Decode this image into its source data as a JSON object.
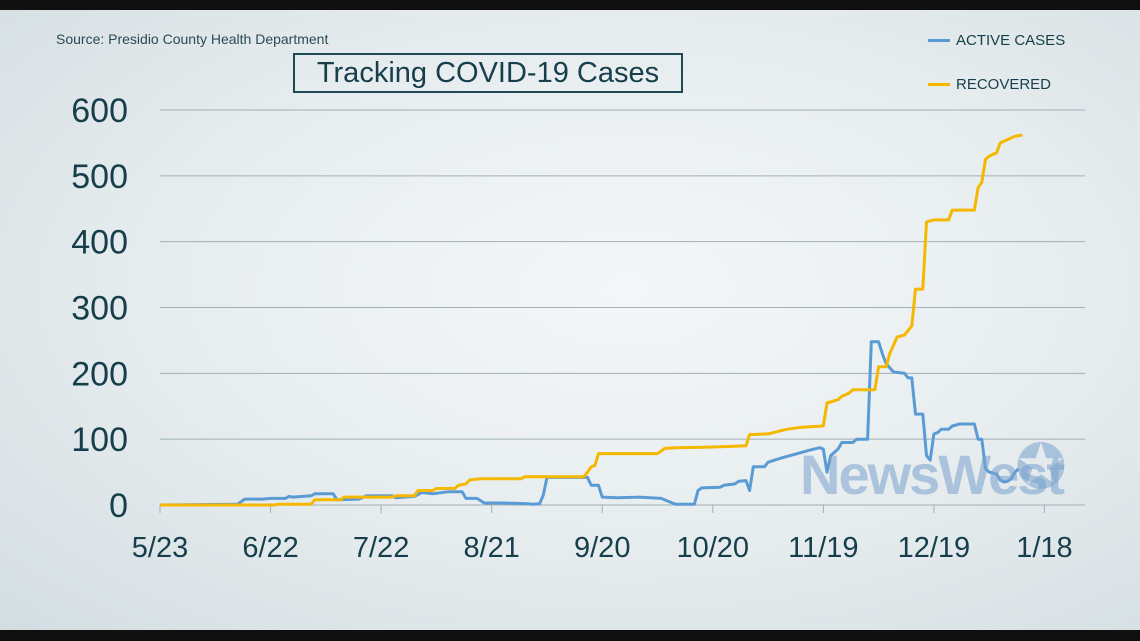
{
  "source": "Source: Presidio County Health Department",
  "title": "Tracking COVID-19 Cases",
  "watermark": "NewsWest",
  "legend": [
    {
      "name": "ACTIVE CASES",
      "color": "#5b9bd5"
    },
    {
      "name": "RECOVERED",
      "color": "#f5b800"
    }
  ],
  "chart_data": {
    "type": "line",
    "title": "Tracking COVID-19 Cases",
    "xlabel": "",
    "ylabel": "",
    "ylim": [
      0,
      600
    ],
    "yticks": [
      0,
      100,
      200,
      300,
      400,
      500,
      600
    ],
    "xlim": [
      "2020-05-23",
      "2021-01-29"
    ],
    "xticks": [
      {
        "label": "5/23",
        "date": "2020-05-23"
      },
      {
        "label": "6/22",
        "date": "2020-06-22"
      },
      {
        "label": "7/22",
        "date": "2020-07-22"
      },
      {
        "label": "8/21",
        "date": "2020-08-21"
      },
      {
        "label": "9/20",
        "date": "2020-09-20"
      },
      {
        "label": "10/20",
        "date": "2020-10-20"
      },
      {
        "label": "11/19",
        "date": "2020-11-19"
      },
      {
        "label": "12/19",
        "date": "2020-12-19"
      },
      {
        "label": "1/18",
        "date": "2021-01-18"
      }
    ],
    "grid": true,
    "legend_position": "top-right",
    "series": [
      {
        "name": "ACTIVE CASES",
        "color": "#5b9bd5",
        "points": [
          [
            "2020-05-23",
            0
          ],
          [
            "2020-06-13",
            1
          ],
          [
            "2020-06-15",
            9
          ],
          [
            "2020-06-20",
            9
          ],
          [
            "2020-06-22",
            10
          ],
          [
            "2020-06-26",
            10
          ],
          [
            "2020-06-27",
            13
          ],
          [
            "2020-06-28",
            12
          ],
          [
            "2020-07-03",
            14
          ],
          [
            "2020-07-04",
            17
          ],
          [
            "2020-07-09",
            17
          ],
          [
            "2020-07-10",
            8
          ],
          [
            "2020-07-16",
            9
          ],
          [
            "2020-07-18",
            14
          ],
          [
            "2020-07-25",
            14
          ],
          [
            "2020-07-26",
            11
          ],
          [
            "2020-07-31",
            13
          ],
          [
            "2020-08-02",
            19
          ],
          [
            "2020-08-05",
            17
          ],
          [
            "2020-08-09",
            20
          ],
          [
            "2020-08-13",
            20
          ],
          [
            "2020-08-14",
            10
          ],
          [
            "2020-08-17",
            10
          ],
          [
            "2020-08-19",
            3
          ],
          [
            "2020-08-24",
            3
          ],
          [
            "2020-08-31",
            2
          ],
          [
            "2020-09-01",
            1
          ],
          [
            "2020-09-03",
            2
          ],
          [
            "2020-09-04",
            15
          ],
          [
            "2020-09-05",
            42
          ],
          [
            "2020-09-16",
            42
          ],
          [
            "2020-09-17",
            30
          ],
          [
            "2020-09-19",
            30
          ],
          [
            "2020-09-20",
            12
          ],
          [
            "2020-09-24",
            11
          ],
          [
            "2020-09-30",
            12
          ],
          [
            "2020-10-06",
            10
          ],
          [
            "2020-10-09",
            3
          ],
          [
            "2020-10-10",
            1
          ],
          [
            "2020-10-15",
            1
          ],
          [
            "2020-10-16",
            22
          ],
          [
            "2020-10-17",
            26
          ],
          [
            "2020-10-22",
            27
          ],
          [
            "2020-10-23",
            30
          ],
          [
            "2020-10-26",
            32
          ],
          [
            "2020-10-27",
            36
          ],
          [
            "2020-10-29",
            37
          ],
          [
            "2020-10-30",
            22
          ],
          [
            "2020-10-31",
            58
          ],
          [
            "2020-11-03",
            58
          ],
          [
            "2020-11-04",
            65
          ],
          [
            "2020-11-08",
            72
          ],
          [
            "2020-11-12",
            78
          ],
          [
            "2020-11-15",
            83
          ],
          [
            "2020-11-18",
            87
          ],
          [
            "2020-11-19",
            85
          ],
          [
            "2020-11-20",
            50
          ],
          [
            "2020-11-21",
            75
          ],
          [
            "2020-11-23",
            85
          ],
          [
            "2020-11-24",
            95
          ],
          [
            "2020-11-27",
            95
          ],
          [
            "2020-11-28",
            100
          ],
          [
            "2020-12-01",
            100
          ],
          [
            "2020-12-02",
            248
          ],
          [
            "2020-12-04",
            248
          ],
          [
            "2020-12-05",
            230
          ],
          [
            "2020-12-06",
            215
          ],
          [
            "2020-12-08",
            202
          ],
          [
            "2020-12-11",
            200
          ],
          [
            "2020-12-12",
            193
          ],
          [
            "2020-12-13",
            193
          ],
          [
            "2020-12-14",
            138
          ],
          [
            "2020-12-16",
            138
          ],
          [
            "2020-12-17",
            75
          ],
          [
            "2020-12-18",
            68
          ],
          [
            "2020-12-19",
            108
          ],
          [
            "2020-12-20",
            110
          ],
          [
            "2020-12-21",
            115
          ],
          [
            "2020-12-23",
            115
          ],
          [
            "2020-12-24",
            120
          ],
          [
            "2020-12-26",
            123
          ],
          [
            "2020-12-30",
            123
          ],
          [
            "2020-12-31",
            100
          ],
          [
            "2021-01-01",
            100
          ],
          [
            "2021-01-02",
            55
          ],
          [
            "2021-01-03",
            50
          ],
          [
            "2021-01-05",
            47
          ],
          [
            "2021-01-06",
            38
          ],
          [
            "2021-01-07",
            35
          ],
          [
            "2021-01-08",
            36
          ],
          [
            "2021-01-09",
            40
          ],
          [
            "2021-01-10",
            50
          ],
          [
            "2021-01-11",
            55
          ]
        ]
      },
      {
        "name": "RECOVERED",
        "color": "#f5b800",
        "points": [
          [
            "2020-05-23",
            0
          ],
          [
            "2020-06-23",
            0
          ],
          [
            "2020-06-24",
            1
          ],
          [
            "2020-07-03",
            1
          ],
          [
            "2020-07-04",
            8
          ],
          [
            "2020-07-11",
            8
          ],
          [
            "2020-07-12",
            12
          ],
          [
            "2020-07-25",
            12
          ],
          [
            "2020-07-26",
            14
          ],
          [
            "2020-07-31",
            14
          ],
          [
            "2020-08-01",
            22
          ],
          [
            "2020-08-05",
            22
          ],
          [
            "2020-08-06",
            25
          ],
          [
            "2020-08-11",
            25
          ],
          [
            "2020-08-12",
            30
          ],
          [
            "2020-08-14",
            32
          ],
          [
            "2020-08-15",
            38
          ],
          [
            "2020-08-18",
            40
          ],
          [
            "2020-08-29",
            40
          ],
          [
            "2020-08-30",
            43
          ],
          [
            "2020-09-15",
            43
          ],
          [
            "2020-09-16",
            50
          ],
          [
            "2020-09-17",
            58
          ],
          [
            "2020-09-18",
            60
          ],
          [
            "2020-09-19",
            78
          ],
          [
            "2020-10-05",
            78
          ],
          [
            "2020-10-06",
            82
          ],
          [
            "2020-10-07",
            86
          ],
          [
            "2020-10-10",
            87
          ],
          [
            "2020-10-19",
            88
          ],
          [
            "2020-10-25",
            89
          ],
          [
            "2020-10-29",
            90
          ],
          [
            "2020-10-30",
            107
          ],
          [
            "2020-11-04",
            108
          ],
          [
            "2020-11-09",
            115
          ],
          [
            "2020-11-13",
            118
          ],
          [
            "2020-11-19",
            120
          ],
          [
            "2020-11-20",
            155
          ],
          [
            "2020-11-23",
            160
          ],
          [
            "2020-11-24",
            165
          ],
          [
            "2020-11-26",
            170
          ],
          [
            "2020-11-27",
            175
          ],
          [
            "2020-12-03",
            175
          ],
          [
            "2020-12-04",
            210
          ],
          [
            "2020-12-06",
            210
          ],
          [
            "2020-12-07",
            230
          ],
          [
            "2020-12-09",
            255
          ],
          [
            "2020-12-11",
            258
          ],
          [
            "2020-12-12",
            265
          ],
          [
            "2020-12-13",
            272
          ],
          [
            "2020-12-14",
            328
          ],
          [
            "2020-12-16",
            328
          ],
          [
            "2020-12-17",
            430
          ],
          [
            "2020-12-19",
            433
          ],
          [
            "2020-12-23",
            433
          ],
          [
            "2020-12-24",
            448
          ],
          [
            "2020-12-30",
            448
          ],
          [
            "2020-12-31",
            482
          ],
          [
            "2021-01-01",
            490
          ],
          [
            "2021-01-02",
            525
          ],
          [
            "2021-01-03",
            530
          ],
          [
            "2021-01-05",
            535
          ],
          [
            "2021-01-06",
            550
          ],
          [
            "2021-01-08",
            555
          ],
          [
            "2021-01-10",
            560
          ],
          [
            "2021-01-12",
            562
          ]
        ]
      }
    ]
  }
}
